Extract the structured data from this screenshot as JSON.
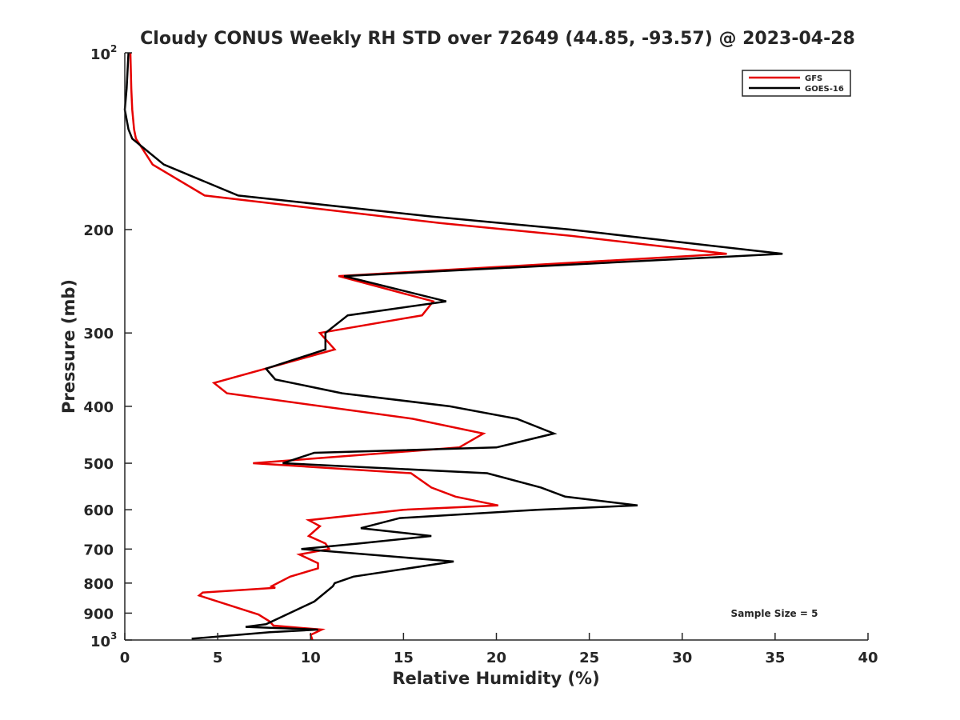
{
  "chart_data": {
    "type": "line",
    "title": "Cloudy CONUS Weekly RH STD over 72649 (44.85, -93.57) @ 2023-04-28",
    "xlabel": "Relative Humidity (%)",
    "ylabel": "Pressure (mb)",
    "xlim": [
      0,
      40
    ],
    "ylim": [
      100,
      1000
    ],
    "y_scale": "log",
    "y_reversed": true,
    "grid": false,
    "legend_position": "top-right",
    "x_ticks": [
      0,
      5,
      10,
      15,
      20,
      25,
      30,
      35,
      40
    ],
    "y_ticks": [
      {
        "value": 100,
        "label": "10",
        "exponent": "2"
      },
      {
        "value": 200,
        "label": "200"
      },
      {
        "value": 300,
        "label": "300"
      },
      {
        "value": 400,
        "label": "400"
      },
      {
        "value": 500,
        "label": "500"
      },
      {
        "value": 600,
        "label": "600"
      },
      {
        "value": 700,
        "label": "700"
      },
      {
        "value": 800,
        "label": "800"
      },
      {
        "value": 900,
        "label": "900"
      },
      {
        "value": 1000,
        "label": "10",
        "exponent": "3"
      }
    ],
    "annotation": "Sample Size = 5",
    "series": [
      {
        "name": "GFS",
        "color": "#e60000",
        "points": [
          [
            0.3,
            100
          ],
          [
            0.35,
            115
          ],
          [
            0.4,
            125
          ],
          [
            0.5,
            135
          ],
          [
            0.6,
            140
          ],
          [
            1.5,
            155
          ],
          [
            4.3,
            175
          ],
          [
            17.0,
            195
          ],
          [
            24.0,
            205
          ],
          [
            32.4,
            220
          ],
          [
            11.5,
            240
          ],
          [
            16.6,
            265
          ],
          [
            16.0,
            280
          ],
          [
            10.5,
            300
          ],
          [
            11.3,
            320
          ],
          [
            4.8,
            365
          ],
          [
            5.5,
            380
          ],
          [
            15.5,
            420
          ],
          [
            19.3,
            445
          ],
          [
            18.0,
            470
          ],
          [
            6.9,
            500
          ],
          [
            15.4,
            520
          ],
          [
            16.5,
            550
          ],
          [
            17.8,
            570
          ],
          [
            20.1,
            590
          ],
          [
            15.0,
            600
          ],
          [
            9.9,
            625
          ],
          [
            10.5,
            640
          ],
          [
            9.9,
            665
          ],
          [
            10.8,
            685
          ],
          [
            11.0,
            700
          ],
          [
            9.4,
            715
          ],
          [
            10.4,
            740
          ],
          [
            10.4,
            755
          ],
          [
            8.9,
            780
          ],
          [
            7.9,
            810
          ],
          [
            8.1,
            815
          ],
          [
            4.2,
            830
          ],
          [
            4.0,
            840
          ],
          [
            7.2,
            905
          ],
          [
            7.8,
            930
          ],
          [
            8.0,
            945
          ],
          [
            10.6,
            960
          ],
          [
            10.0,
            980
          ],
          [
            10.1,
            1000
          ]
        ]
      },
      {
        "name": "GOES-16",
        "color": "#000000",
        "points": [
          [
            0.2,
            100
          ],
          [
            0.1,
            115
          ],
          [
            0.0,
            125
          ],
          [
            0.2,
            135
          ],
          [
            0.4,
            140
          ],
          [
            2.1,
            155
          ],
          [
            6.1,
            175
          ],
          [
            16.5,
            190
          ],
          [
            24.0,
            200
          ],
          [
            35.4,
            220
          ],
          [
            11.8,
            240
          ],
          [
            17.3,
            265
          ],
          [
            12.0,
            280
          ],
          [
            10.8,
            300
          ],
          [
            10.8,
            320
          ],
          [
            7.6,
            345
          ],
          [
            8.1,
            360
          ],
          [
            11.7,
            380
          ],
          [
            17.5,
            400
          ],
          [
            21.1,
            420
          ],
          [
            23.1,
            445
          ],
          [
            20.0,
            470
          ],
          [
            10.2,
            480
          ],
          [
            8.5,
            500
          ],
          [
            19.5,
            520
          ],
          [
            22.4,
            550
          ],
          [
            23.7,
            570
          ],
          [
            27.6,
            590
          ],
          [
            22.2,
            600
          ],
          [
            14.8,
            620
          ],
          [
            12.7,
            645
          ],
          [
            16.5,
            665
          ],
          [
            12.6,
            685
          ],
          [
            9.5,
            700
          ],
          [
            17.7,
            735
          ],
          [
            12.3,
            780
          ],
          [
            11.3,
            800
          ],
          [
            11.2,
            810
          ],
          [
            10.2,
            860
          ],
          [
            7.6,
            940
          ],
          [
            6.5,
            950
          ],
          [
            10.4,
            960
          ],
          [
            7.8,
            970
          ],
          [
            3.6,
            995
          ]
        ]
      }
    ]
  }
}
